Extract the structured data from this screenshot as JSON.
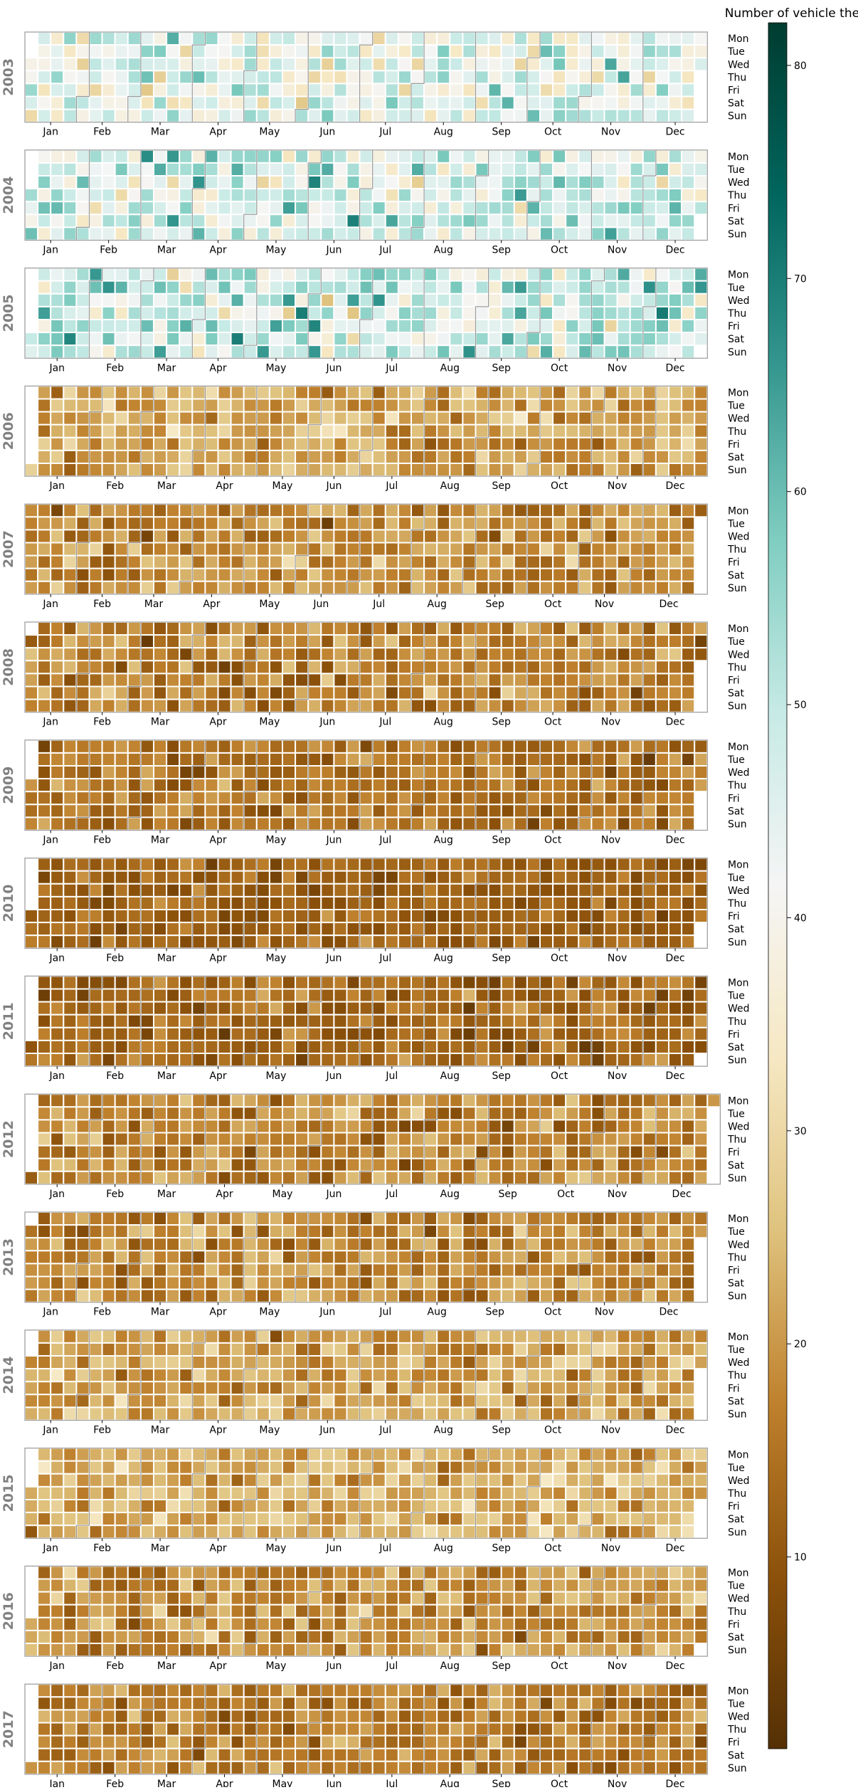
{
  "chart_data": {
    "type": "heatmap",
    "subtype": "calendar",
    "colorbar_label": "Number of vehicle thefts",
    "colorbar_ticks": [
      10,
      20,
      30,
      40,
      50,
      60,
      70,
      80
    ],
    "color_range": [
      1,
      82
    ],
    "colormap": "BrBG",
    "colormap_stops": [
      "#543005",
      "#8c510a",
      "#bf812d",
      "#dfc27d",
      "#f6e8c3",
      "#f5f5f5",
      "#c7eae5",
      "#80cdc1",
      "#35978f",
      "#01665e",
      "#003c30"
    ],
    "weekday_labels": [
      "Mon",
      "Tue",
      "Wed",
      "Thu",
      "Fri",
      "Sat",
      "Sun"
    ],
    "month_labels": [
      "Jan",
      "Feb",
      "Mar",
      "Apr",
      "May",
      "Jun",
      "Jul",
      "Aug",
      "Sep",
      "Oct",
      "Nov",
      "Dec"
    ],
    "years": [
      {
        "year": "2003",
        "mean": 44,
        "spread": 10
      },
      {
        "year": "2004",
        "mean": 48,
        "spread": 10
      },
      {
        "year": "2005",
        "mean": 49,
        "spread": 11
      },
      {
        "year": "2006",
        "mean": 22,
        "spread": 6
      },
      {
        "year": "2007",
        "mean": 18,
        "spread": 6
      },
      {
        "year": "2008",
        "mean": 17,
        "spread": 6
      },
      {
        "year": "2009",
        "mean": 15,
        "spread": 5
      },
      {
        "year": "2010",
        "mean": 12,
        "spread": 4
      },
      {
        "year": "2011",
        "mean": 13,
        "spread": 5
      },
      {
        "year": "2012",
        "mean": 17,
        "spread": 6
      },
      {
        "year": "2013",
        "mean": 18,
        "spread": 6
      },
      {
        "year": "2014",
        "mean": 21,
        "spread": 6
      },
      {
        "year": "2015",
        "mean": 23,
        "spread": 6
      },
      {
        "year": "2016",
        "mean": 19,
        "spread": 6
      },
      {
        "year": "2017",
        "mean": 16,
        "spread": 5
      }
    ]
  }
}
